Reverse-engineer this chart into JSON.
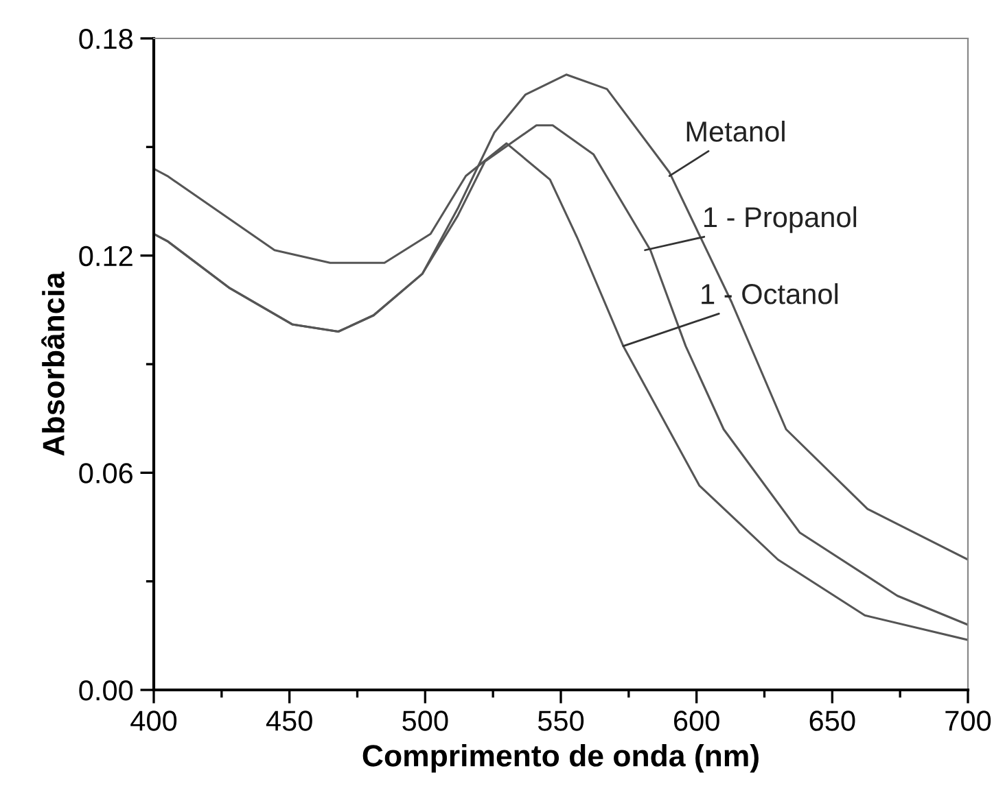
{
  "chart_data": {
    "type": "line",
    "xlabel": "Comprimento de onda (nm)",
    "ylabel": "Absorbância",
    "xlim": [
      400,
      700
    ],
    "ylim": [
      0,
      0.18
    ],
    "xticks": [
      400,
      {
        "value": 425,
        "label": null
      },
      450,
      {
        "value": 475,
        "label": null
      },
      500,
      {
        "value": 525,
        "label": null
      },
      550,
      {
        "value": 575,
        "label": null
      },
      600,
      {
        "value": 625,
        "label": null
      },
      650,
      {
        "value": 675,
        "label": null
      },
      700
    ],
    "yticks": [
      {
        "value": 0,
        "label": "0.00"
      },
      {
        "value": 0.03,
        "label": null
      },
      {
        "value": 0.06,
        "label": "0.06"
      },
      {
        "value": 0.09,
        "label": null
      },
      {
        "value": 0.12,
        "label": "0.12"
      },
      {
        "value": 0.15,
        "label": null
      },
      {
        "value": 0.18,
        "label": "0.18"
      }
    ],
    "grid": false,
    "legend": false,
    "marker": "none",
    "line_style": "solid",
    "series": [
      {
        "color": "#555555",
        "x": [
          400,
          405,
          428,
          451,
          468,
          481,
          499,
          512,
          525.5,
          537,
          552,
          567,
          590,
          613,
          633,
          663,
          700
        ],
        "values": [
          0.126,
          0.124,
          0.111,
          0.101,
          0.099,
          0.1035,
          0.115,
          0.133,
          0.154,
          0.1645,
          0.17,
          0.166,
          0.143,
          0.107,
          0.072,
          0.05,
          0.036
        ]
      },
      {
        "color": "#555555",
        "x": [
          400,
          405,
          428,
          451,
          468,
          481,
          499,
          512,
          522,
          541,
          547,
          562,
          583,
          596,
          610,
          638,
          674,
          700
        ],
        "values": [
          0.126,
          0.124,
          0.111,
          0.101,
          0.099,
          0.1035,
          0.115,
          0.131,
          0.146,
          0.156,
          0.156,
          0.148,
          0.1215,
          0.095,
          0.072,
          0.0435,
          0.026,
          0.018
        ]
      },
      {
        "color": "#555555",
        "x": [
          400,
          405,
          444.5,
          465,
          485,
          502,
          515,
          530,
          546,
          556,
          573,
          601,
          630,
          662,
          700
        ],
        "values": [
          0.144,
          0.142,
          0.1215,
          0.118,
          0.118,
          0.126,
          0.142,
          0.151,
          0.141,
          0.125,
          0.095,
          0.0565,
          0.036,
          0.0206,
          0.0138
        ]
      }
    ],
    "annotations": [
      {
        "text": "Metanol",
        "x": 590,
        "y": 0.142
      },
      {
        "text": "1 - Propanol",
        "x": 581,
        "y": 0.1215
      },
      {
        "text": "1 - Octanol",
        "x": 573,
        "y": 0.095
      }
    ]
  }
}
